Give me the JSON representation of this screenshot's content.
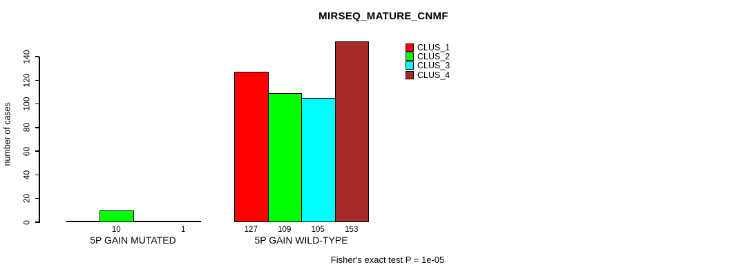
{
  "chart_data": {
    "type": "bar",
    "title": "MIRSEQ_MATURE_CNMF",
    "ylabel": "number of cases",
    "ylim": [
      0,
      140
    ],
    "yticks": [
      0,
      20,
      40,
      60,
      80,
      100,
      120,
      140
    ],
    "categories": [
      "5P GAIN MUTATED",
      "5P GAIN WILD-TYPE"
    ],
    "series": [
      {
        "name": "CLUS_1",
        "color": "#FF0000",
        "values": [
          0,
          127
        ]
      },
      {
        "name": "CLUS_2",
        "color": "#00FF00",
        "values": [
          10,
          109
        ]
      },
      {
        "name": "CLUS_3",
        "color": "#00FFFF",
        "values": [
          0,
          105
        ]
      },
      {
        "name": "CLUS_4",
        "color": "#A52A2A",
        "values": [
          1,
          153
        ]
      }
    ],
    "bar_labels": [
      [
        "",
        "10",
        "",
        "1"
      ],
      [
        "127",
        "109",
        "105",
        "153"
      ]
    ],
    "legend": {
      "position": "top-right",
      "entries": [
        "CLUS_1",
        "CLUS_2",
        "CLUS_3",
        "CLUS_4"
      ]
    },
    "annotation": "Fisher's exact test P = 1e-05",
    "grid": false,
    "axis_color": "#000000",
    "background": "#FFFFFF"
  }
}
